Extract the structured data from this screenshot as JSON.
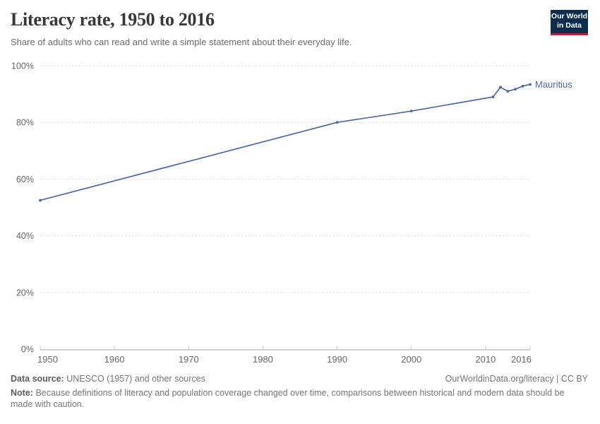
{
  "header": {
    "title": "Literacy rate, 1950 to 2016",
    "subtitle": "Share of adults who can read and write a simple statement about their everyday life.",
    "logo": {
      "line1": "Our World",
      "line2": "in Data"
    }
  },
  "chart_data": {
    "type": "line",
    "title": "Literacy rate, 1950 to 2016",
    "xlabel": "",
    "ylabel": "",
    "x_range": [
      1950,
      2016
    ],
    "ylim": [
      0,
      100
    ],
    "x_ticks": [
      "1950",
      "1960",
      "1970",
      "1980",
      "1990",
      "2000",
      "2010",
      "2016"
    ],
    "x_tick_years": [
      1950,
      1960,
      1970,
      1980,
      1990,
      2000,
      2010,
      2016
    ],
    "y_ticks": [
      0,
      20,
      40,
      60,
      80,
      100
    ],
    "y_tick_suffix": "%",
    "grid": true,
    "legend_position": "end-of-line",
    "series": [
      {
        "name": "Mauritius",
        "color": "#4b69a5",
        "x": [
          1950,
          1990,
          2000,
          2011,
          2012,
          2013,
          2014,
          2015,
          2016
        ],
        "values": [
          52.5,
          80.0,
          84.0,
          89.0,
          92.4,
          91.0,
          91.7,
          92.8,
          93.4
        ]
      }
    ]
  },
  "footer": {
    "datasource_label": "Data source:",
    "datasource_text": "UNESCO (1957) and other sources",
    "note_label": "Note:",
    "note_text": "Because definitions of literacy and population coverage changed over time, comparisons between historical and modern data should be made with caution.",
    "link": "OurWorldinData.org/literacy | CC BY"
  },
  "colors": {
    "line": "#4b69a5",
    "grid": "#dedede",
    "axis_line": "#a3a3a3",
    "tick_mark": "#cfcfcf",
    "axis_text": "#686868",
    "logo_bg": "#0d2d4e",
    "logo_red": "#c0202f"
  }
}
